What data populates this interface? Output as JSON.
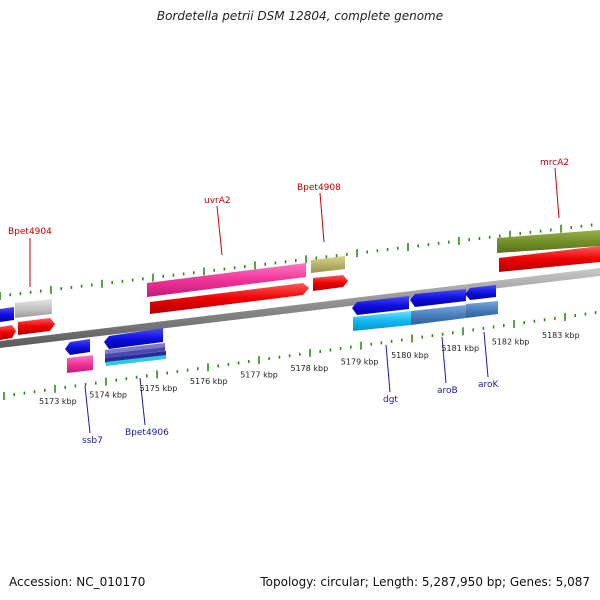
{
  "title": "Bordetella petrii DSM 12804, complete genome",
  "accession": "Accession: NC_010170",
  "topology": "Topology: circular; Length: 5,287,950 bp; Genes: 5,087",
  "scale_labels": [
    "5173 kbp",
    "5174 kbp",
    "5175 kbp",
    "5176 kbp",
    "5177 kbp",
    "5178 kbp",
    "5179 kbp",
    "5180 kbp",
    "5181 kbp",
    "5182 kbp",
    "5183 kbp"
  ],
  "gene_labels": {
    "bpet4904": "Bpet4904",
    "uvra2": "uvrA2",
    "bpet4908": "Bpet4908",
    "mrca2": "mrcA2",
    "ssb7": "ssb7",
    "bpet4906": "Bpet4906",
    "dgt": "dgt",
    "arob": "aroB",
    "arok": "aroK"
  },
  "colors": {
    "red_label": "#c00000",
    "blue_label": "#1a1aa0",
    "tick_green": "#2f8a1a",
    "backbone": "#8a8a8a"
  }
}
